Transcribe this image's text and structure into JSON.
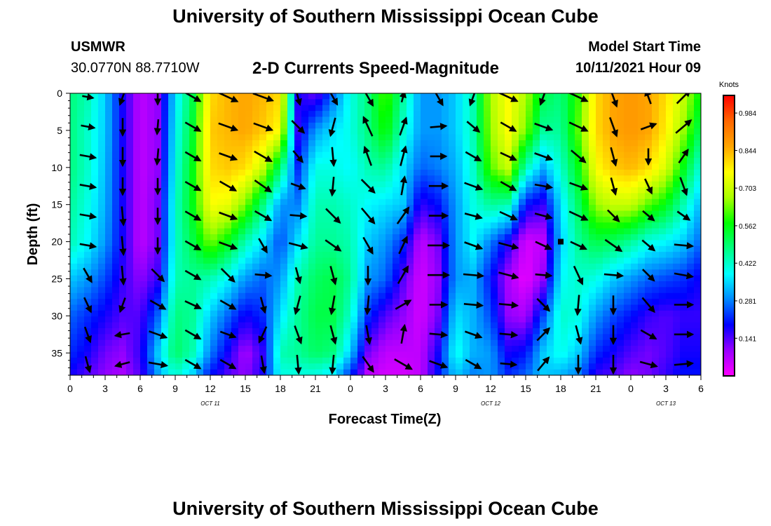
{
  "header": {
    "title_top": "University of Southern Mississippi Ocean Cube",
    "title_bottom": "University of Southern Mississippi Ocean Cube",
    "station": "USMWR",
    "coords": "30.0770N  88.7710W",
    "model_label": "Model Start Time",
    "model_time": "10/11/2021 Hour 09"
  },
  "chart_data": {
    "type": "heatmap",
    "title": "2-D Currents Speed-Magnitude",
    "xlabel": "Forecast Time(Z)",
    "ylabel": "Depth (ft)",
    "x_range_hours": [
      0,
      54
    ],
    "y_range_ft": [
      0,
      38
    ],
    "y_ticks": [
      "0",
      "5",
      "10",
      "15",
      "20",
      "25",
      "30",
      "35"
    ],
    "x_ticks": [
      "0",
      "3",
      "6",
      "9",
      "12",
      "15",
      "18",
      "21",
      "0",
      "3",
      "6",
      "9",
      "12",
      "15",
      "18",
      "21",
      "0",
      "3",
      "6"
    ],
    "date_labels": [
      {
        "text": "OCT 11",
        "hour": 12
      },
      {
        "text": "OCT 12",
        "hour": 36
      },
      {
        "text": "OCT 13",
        "hour": 51
      }
    ],
    "colorbar": {
      "unit": "Knots",
      "ticks": [
        "0.984",
        "0.844",
        "0.703",
        "0.562",
        "0.422",
        "0.281",
        "0.141"
      ],
      "range": [
        0,
        1.05
      ],
      "colors": [
        "#ff00ff",
        "#9900ff",
        "#0000ff",
        "#0088ff",
        "#00ffff",
        "#00ff80",
        "#00ff00",
        "#aaff00",
        "#ffff00",
        "#ffa500",
        "#ff6600",
        "#ff0000"
      ]
    },
    "speed_field": {
      "hours": [
        0,
        1.5,
        3,
        4.5,
        6,
        7.5,
        9,
        10.5,
        12,
        13.5,
        15,
        16.5,
        18,
        19.5,
        21,
        22.5,
        24,
        25.5,
        27,
        28.5,
        30,
        31.5,
        33,
        34.5,
        36,
        37.5,
        39,
        40.5,
        42,
        43.5,
        45,
        46.5,
        48,
        49.5,
        51,
        52.5,
        54
      ],
      "depths_ft": [
        0,
        5,
        10,
        15,
        20,
        25,
        30,
        35,
        38
      ],
      "values_knots": [
        [
          0.48,
          0.48,
          0.48,
          0.46,
          0.44,
          0.34,
          0.26,
          0.22,
          0.18
        ],
        [
          0.44,
          0.42,
          0.42,
          0.4,
          0.38,
          0.3,
          0.22,
          0.18,
          0.14
        ],
        [
          0.34,
          0.34,
          0.33,
          0.32,
          0.3,
          0.24,
          0.18,
          0.12,
          0.1
        ],
        [
          0.18,
          0.18,
          0.18,
          0.18,
          0.18,
          0.16,
          0.14,
          0.1,
          0.08
        ],
        [
          0.06,
          0.06,
          0.06,
          0.06,
          0.06,
          0.1,
          0.14,
          0.16,
          0.14
        ],
        [
          0.1,
          0.1,
          0.1,
          0.12,
          0.12,
          0.16,
          0.26,
          0.34,
          0.3
        ],
        [
          0.36,
          0.38,
          0.4,
          0.42,
          0.42,
          0.44,
          0.48,
          0.5,
          0.42
        ],
        [
          0.52,
          0.54,
          0.56,
          0.56,
          0.52,
          0.46,
          0.46,
          0.44,
          0.34
        ],
        [
          0.8,
          0.82,
          0.8,
          0.76,
          0.64,
          0.44,
          0.34,
          0.28,
          0.2
        ],
        [
          0.84,
          0.84,
          0.82,
          0.74,
          0.56,
          0.38,
          0.26,
          0.18,
          0.14
        ],
        [
          0.86,
          0.86,
          0.8,
          0.64,
          0.44,
          0.3,
          0.18,
          0.08,
          0.1
        ],
        [
          0.84,
          0.82,
          0.7,
          0.48,
          0.36,
          0.26,
          0.22,
          0.16,
          0.18
        ],
        [
          0.8,
          0.76,
          0.5,
          0.3,
          0.24,
          0.3,
          0.36,
          0.44,
          0.4
        ],
        [
          0.18,
          0.16,
          0.22,
          0.28,
          0.36,
          0.44,
          0.46,
          0.46,
          0.4
        ],
        [
          0.12,
          0.3,
          0.4,
          0.44,
          0.46,
          0.5,
          0.52,
          0.5,
          0.4
        ],
        [
          0.26,
          0.36,
          0.4,
          0.44,
          0.46,
          0.52,
          0.52,
          0.48,
          0.36
        ],
        [
          0.4,
          0.4,
          0.38,
          0.42,
          0.44,
          0.46,
          0.42,
          0.34,
          0.22
        ],
        [
          0.48,
          0.48,
          0.44,
          0.38,
          0.34,
          0.3,
          0.22,
          0.12,
          0.06
        ],
        [
          0.62,
          0.58,
          0.46,
          0.36,
          0.3,
          0.26,
          0.14,
          0.06,
          0.04
        ],
        [
          0.46,
          0.42,
          0.36,
          0.34,
          0.22,
          0.14,
          0.1,
          0.06,
          0.04
        ],
        [
          0.3,
          0.3,
          0.26,
          0.16,
          0.06,
          0.04,
          0.04,
          0.06,
          0.06
        ],
        [
          0.3,
          0.3,
          0.28,
          0.2,
          0.12,
          0.1,
          0.12,
          0.18,
          0.2
        ],
        [
          0.34,
          0.34,
          0.32,
          0.3,
          0.3,
          0.3,
          0.36,
          0.4,
          0.34
        ],
        [
          0.44,
          0.44,
          0.42,
          0.4,
          0.38,
          0.32,
          0.32,
          0.32,
          0.28
        ],
        [
          0.68,
          0.66,
          0.62,
          0.46,
          0.28,
          0.2,
          0.24,
          0.3,
          0.3
        ],
        [
          0.76,
          0.76,
          0.7,
          0.44,
          0.18,
          0.08,
          0.1,
          0.18,
          0.22
        ],
        [
          0.68,
          0.64,
          0.44,
          0.2,
          0.04,
          0.02,
          0.08,
          0.2,
          0.26
        ],
        [
          0.52,
          0.46,
          0.32,
          0.16,
          0.06,
          0.1,
          0.24,
          0.34,
          0.34
        ],
        [
          0.48,
          0.46,
          0.42,
          0.36,
          0.34,
          0.38,
          0.42,
          0.4,
          0.32
        ],
        [
          0.6,
          0.62,
          0.56,
          0.5,
          0.46,
          0.42,
          0.4,
          0.34,
          0.28
        ],
        [
          0.8,
          0.8,
          0.76,
          0.66,
          0.52,
          0.4,
          0.3,
          0.22,
          0.16
        ],
        [
          0.86,
          0.86,
          0.82,
          0.7,
          0.5,
          0.34,
          0.24,
          0.18,
          0.14
        ],
        [
          0.88,
          0.88,
          0.84,
          0.7,
          0.46,
          0.3,
          0.2,
          0.14,
          0.1
        ],
        [
          0.86,
          0.86,
          0.8,
          0.62,
          0.4,
          0.26,
          0.16,
          0.12,
          0.12
        ],
        [
          0.8,
          0.78,
          0.72,
          0.56,
          0.38,
          0.24,
          0.14,
          0.14,
          0.16
        ],
        [
          0.7,
          0.66,
          0.56,
          0.44,
          0.34,
          0.22,
          0.16,
          0.18,
          0.2
        ],
        [
          0.56,
          0.5,
          0.4,
          0.32,
          0.26,
          0.18,
          0.16,
          0.18,
          0.2
        ]
      ]
    },
    "vectors": {
      "note_units": "direction in degrees (0 = up/north, clockwise); length relative 0-1",
      "hours": [
        1.5,
        4.5,
        7.5,
        10.5,
        13.5,
        16.5,
        19.5,
        22.5,
        25.5,
        28.5,
        31.5,
        34.5,
        37.5,
        40.5,
        43.5,
        46.5,
        49.5,
        52.5
      ],
      "depths_ft": [
        0.5,
        4.5,
        8.5,
        12.5,
        16.5,
        20.5,
        24.5,
        28.5,
        32.5,
        36.5
      ],
      "dir_deg": [
        [
          100,
          200,
          180,
          120,
          115,
          110,
          165,
          150,
          150,
          15,
          150,
          200,
          115,
          200,
          115,
          160,
          340,
          45
        ],
        [
          100,
          180,
          185,
          120,
          110,
          110,
          135,
          195,
          335,
          20,
          85,
          130,
          120,
          110,
          115,
          160,
          70,
          50
        ],
        [
          100,
          180,
          185,
          120,
          110,
          120,
          140,
          175,
          340,
          15,
          90,
          120,
          115,
          110,
          130,
          165,
          180,
          35
        ],
        [
          100,
          180,
          180,
          120,
          120,
          125,
          110,
          185,
          135,
          10,
          90,
          110,
          120,
          100,
          110,
          165,
          155,
          160
        ],
        [
          100,
          175,
          180,
          120,
          110,
          120,
          95,
          135,
          140,
          35,
          90,
          105,
          115,
          105,
          115,
          135,
          130,
          125
        ],
        [
          100,
          175,
          180,
          120,
          110,
          150,
          105,
          125,
          150,
          25,
          90,
          110,
          105,
          115,
          115,
          125,
          130,
          95
        ],
        [
          150,
          175,
          135,
          120,
          135,
          95,
          165,
          165,
          180,
          30,
          90,
          95,
          105,
          95,
          155,
          95,
          135,
          100
        ],
        [
          155,
          200,
          120,
          115,
          120,
          165,
          195,
          190,
          185,
          60,
          90,
          95,
          95,
          135,
          185,
          180,
          140,
          90
        ],
        [
          160,
          260,
          110,
          120,
          110,
          205,
          160,
          165,
          170,
          10,
          95,
          110,
          95,
          45,
          165,
          180,
          120,
          90
        ],
        [
          165,
          255,
          100,
          120,
          120,
          170,
          175,
          185,
          145,
          120,
          110,
          120,
          95,
          40,
          180,
          180,
          105,
          85
        ]
      ],
      "len": [
        [
          0.2,
          0.6,
          0.5,
          0.7,
          1.0,
          1.0,
          0.6,
          0.7,
          0.9,
          0.2,
          0.8,
          0.7,
          0.9,
          0.6,
          0.9,
          0.9,
          0.5,
          0.8
        ],
        [
          0.4,
          0.7,
          0.5,
          0.7,
          0.9,
          0.9,
          0.7,
          0.8,
          1.0,
          0.8,
          0.6,
          0.6,
          0.7,
          0.8,
          0.9,
          0.9,
          0.6,
          0.9
        ],
        [
          0.6,
          0.8,
          0.6,
          0.7,
          0.8,
          0.9,
          0.5,
          0.8,
          0.9,
          0.9,
          0.6,
          0.7,
          0.7,
          0.8,
          0.8,
          0.8,
          0.6,
          0.6
        ],
        [
          0.6,
          0.7,
          0.6,
          0.7,
          0.8,
          0.9,
          0.5,
          0.8,
          0.8,
          0.8,
          0.8,
          0.8,
          0.7,
          0.7,
          0.8,
          0.7,
          0.6,
          0.8
        ],
        [
          0.6,
          0.8,
          0.6,
          0.7,
          0.8,
          0.8,
          0.6,
          0.9,
          0.9,
          0.9,
          0.8,
          0.7,
          0.8,
          0.7,
          0.9,
          0.6,
          0.5,
          0.5
        ],
        [
          0.6,
          0.8,
          0.6,
          0.7,
          0.8,
          0.6,
          0.8,
          0.8,
          0.8,
          0.8,
          1.0,
          0.8,
          0.9,
          0.7,
          0.7,
          0.9,
          0.6,
          0.8
        ],
        [
          0.6,
          0.8,
          0.7,
          0.7,
          0.8,
          0.6,
          0.6,
          0.8,
          0.8,
          0.9,
          1.0,
          0.9,
          0.9,
          0.6,
          0.9,
          0.8,
          0.6,
          0.8
        ],
        [
          0.6,
          0.5,
          0.7,
          0.7,
          0.7,
          0.6,
          0.8,
          0.8,
          0.8,
          0.7,
          0.7,
          0.8,
          0.8,
          0.7,
          0.9,
          0.8,
          0.8,
          0.8
        ],
        [
          0.6,
          0.5,
          0.8,
          0.7,
          0.6,
          0.7,
          0.8,
          0.8,
          0.8,
          0.8,
          0.7,
          0.7,
          0.7,
          0.7,
          0.8,
          0.8,
          0.7,
          0.8
        ],
        [
          0.6,
          0.5,
          0.8,
          0.7,
          0.7,
          0.7,
          0.8,
          0.8,
          0.8,
          0.9,
          0.8,
          0.7,
          0.6,
          0.7,
          0.8,
          0.8,
          0.7,
          0.8
        ]
      ]
    },
    "marker": {
      "hour": 42,
      "depth_ft": 20
    }
  }
}
